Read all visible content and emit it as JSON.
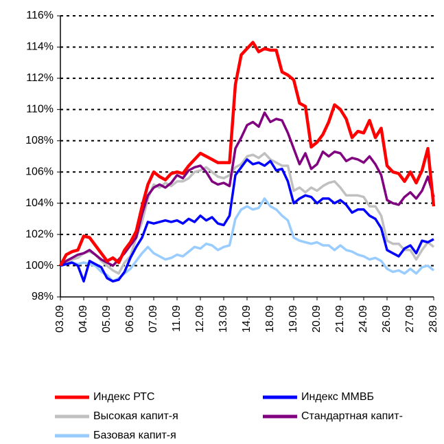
{
  "chart_data": {
    "type": "line",
    "categories": [
      "03.09",
      null,
      null,
      null,
      "04.09",
      null,
      null,
      null,
      "05.09",
      null,
      null,
      null,
      "06.09",
      null,
      null,
      null,
      "07.09",
      null,
      null,
      null,
      "11.09",
      null,
      null,
      null,
      "12.09",
      null,
      null,
      null,
      "13.09",
      null,
      null,
      null,
      "14.09",
      null,
      null,
      null,
      "18.09",
      null,
      null,
      null,
      "19.09",
      null,
      null,
      null,
      "20.09",
      null,
      null,
      null,
      "21.09",
      null,
      null,
      null,
      "24.09",
      null,
      null,
      null,
      "26.09",
      null,
      null,
      null,
      "27.09",
      null,
      null,
      null,
      "28.09"
    ],
    "series": [
      {
        "name": "Индекс РТС",
        "color": "#ff0000",
        "values": [
          100.0,
          100.7,
          100.9,
          101.0,
          101.9,
          101.8,
          101.3,
          100.8,
          100.3,
          100.5,
          100.2,
          101.0,
          101.5,
          102.2,
          103.8,
          105.2,
          106.0,
          105.7,
          105.5,
          105.9,
          106.0,
          105.9,
          106.4,
          106.8,
          107.2,
          107.0,
          106.8,
          106.6,
          106.6,
          106.6,
          111.6,
          113.5,
          113.9,
          114.3,
          113.7,
          113.9,
          113.8,
          113.8,
          112.4,
          112.2,
          111.9,
          110.4,
          110.2,
          107.6,
          107.9,
          108.4,
          109.2,
          110.3,
          110.0,
          109.4,
          108.2,
          108.6,
          108.5,
          109.3,
          108.2,
          108.8,
          106.4,
          106.0,
          105.9,
          105.4,
          106.0,
          105.3,
          106.1,
          107.5,
          103.8
        ]
      },
      {
        "name": "Индекс ММВБ",
        "color": "#0000ff",
        "values": [
          100.0,
          100.1,
          100.2,
          100.0,
          99.0,
          100.3,
          100.1,
          99.9,
          99.2,
          99.0,
          99.1,
          99.6,
          100.5,
          101.2,
          101.8,
          102.8,
          102.7,
          102.8,
          102.9,
          102.8,
          102.9,
          102.7,
          103.0,
          102.8,
          103.2,
          102.9,
          103.1,
          102.7,
          102.6,
          103.2,
          105.8,
          106.3,
          106.8,
          106.5,
          106.6,
          106.4,
          106.7,
          106.1,
          106.2,
          105.4,
          104.0,
          104.3,
          104.5,
          104.4,
          104.0,
          104.3,
          104.3,
          104.0,
          104.2,
          103.9,
          103.4,
          103.6,
          103.6,
          103.2,
          103.0,
          102.4,
          101.0,
          100.8,
          100.6,
          101.1,
          101.3,
          100.8,
          101.6,
          101.5,
          101.7
        ]
      },
      {
        "name": "Высокая капит-я",
        "color": "#c0c0c0",
        "values": [
          100.0,
          100.2,
          100.4,
          100.5,
          100.8,
          100.9,
          100.7,
          100.3,
          100.0,
          99.7,
          99.5,
          100.2,
          100.6,
          101.8,
          102.8,
          104.3,
          105.2,
          105.0,
          105.3,
          105.1,
          105.4,
          105.4,
          105.6,
          106.0,
          106.1,
          106.3,
          106.0,
          105.7,
          105.6,
          105.8,
          106.3,
          106.5,
          107.0,
          107.1,
          106.9,
          107.2,
          106.8,
          106.6,
          106.4,
          106.4,
          104.8,
          105.0,
          104.7,
          105.0,
          104.8,
          105.1,
          105.3,
          105.4,
          105.0,
          104.5,
          104.5,
          104.5,
          104.4,
          103.8,
          103.8,
          103.2,
          101.6,
          101.4,
          101.4,
          101.0,
          101.0,
          100.4,
          101.0,
          101.5,
          101.2
        ]
      },
      {
        "name": "Стандартная капит-",
        "color": "#800080",
        "values": [
          100.0,
          100.3,
          100.5,
          100.7,
          100.8,
          101.0,
          100.7,
          100.4,
          100.2,
          100.0,
          100.4,
          100.8,
          101.3,
          101.8,
          103.3,
          104.5,
          105.0,
          105.2,
          105.0,
          105.3,
          105.8,
          105.6,
          106.1,
          106.3,
          106.4,
          106.0,
          105.4,
          105.2,
          105.3,
          105.1,
          107.5,
          108.2,
          109.0,
          109.2,
          108.9,
          109.8,
          109.2,
          109.4,
          109.3,
          108.5,
          107.5,
          106.5,
          107.2,
          106.2,
          106.5,
          107.3,
          107.0,
          107.3,
          107.2,
          106.7,
          106.9,
          106.8,
          106.6,
          107.0,
          106.5,
          105.8,
          104.2,
          104.0,
          103.9,
          104.4,
          104.7,
          104.3,
          104.8,
          105.7,
          104.4
        ]
      },
      {
        "name": "Базовая капит-я",
        "color": "#99ccff",
        "values": [
          100.0,
          100.1,
          100.2,
          100.1,
          100.2,
          100.1,
          100.0,
          99.6,
          99.4,
          99.0,
          99.2,
          99.5,
          99.8,
          100.3,
          100.8,
          101.2,
          100.8,
          100.6,
          100.4,
          100.5,
          100.7,
          100.6,
          100.9,
          101.2,
          101.1,
          101.4,
          101.3,
          101.0,
          101.2,
          101.3,
          103.0,
          103.6,
          103.8,
          103.6,
          103.7,
          104.3,
          103.8,
          103.6,
          103.2,
          102.9,
          101.8,
          101.6,
          101.5,
          101.4,
          101.5,
          101.3,
          101.3,
          101.0,
          101.3,
          101.0,
          100.9,
          100.7,
          100.6,
          100.4,
          100.5,
          100.3,
          99.8,
          99.6,
          99.7,
          99.5,
          99.8,
          99.5,
          99.9,
          100.0,
          99.7
        ]
      }
    ],
    "ylim": [
      98,
      116
    ],
    "yticks": [
      {
        "value": 98,
        "label": "98%"
      },
      {
        "value": 100,
        "label": "100%"
      },
      {
        "value": 102,
        "label": "102%"
      },
      {
        "value": 104,
        "label": "104%"
      },
      {
        "value": 106,
        "label": "106%"
      },
      {
        "value": 108,
        "label": "108%"
      },
      {
        "value": 110,
        "label": "110%"
      },
      {
        "value": 112,
        "label": "112%"
      },
      {
        "value": 114,
        "label": "114%"
      },
      {
        "value": 116,
        "label": "116%"
      }
    ],
    "grid": true
  }
}
